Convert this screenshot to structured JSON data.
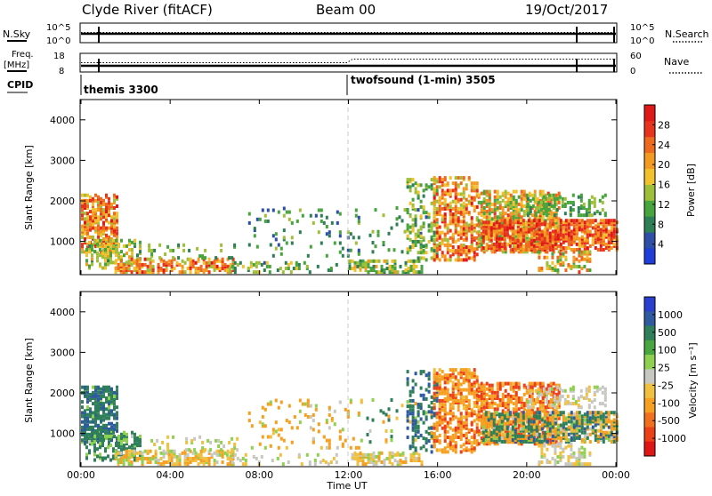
{
  "header": {
    "station": "Clyde River (fitACF)",
    "beam": "Beam 00",
    "date": "19/Oct/2017"
  },
  "top_panel": {
    "nsky_label": "N.Sky",
    "nsearch_label": "N.Search",
    "left_ticks": [
      "10^5",
      "10^0"
    ],
    "right_ticks": [
      "10^5",
      "10^0"
    ]
  },
  "freq_panel": {
    "freq_label": "Freq.",
    "freq_unit": "[MHz]",
    "nave_label": "Nave",
    "left_ticks": [
      "18",
      "8"
    ],
    "right_ticks": [
      "60",
      "0"
    ]
  },
  "cpid": {
    "label": "CPID",
    "segments": [
      {
        "name": "themis 3300",
        "start_hour": 0
      },
      {
        "name": "twofsound (1-min) 3505",
        "start_hour": 12
      }
    ]
  },
  "chart_data": [
    {
      "type": "heatmap",
      "parameter": "Power",
      "ylabel": "Slant Range [km]",
      "ylim": [
        180,
        4500
      ],
      "yticks": [
        1000,
        2000,
        3000,
        4000
      ],
      "xlim": [
        0,
        24
      ],
      "colorbar": {
        "label": "Power [dB]",
        "ticks": [
          "4",
          "8",
          "12",
          "16",
          "20",
          "24",
          "28"
        ],
        "tick_values": [
          4,
          8,
          12,
          16,
          20,
          24,
          28
        ],
        "range": [
          0,
          32
        ],
        "colors": [
          "#1f3dd8",
          "#2e4fa8",
          "#2f7f56",
          "#48a43c",
          "#9fbf3a",
          "#f2c12e",
          "#f39a22",
          "#ee6a1e",
          "#e8341c",
          "#e01818"
        ]
      }
    },
    {
      "type": "heatmap",
      "parameter": "Velocity",
      "ylabel": "Slant Range [km]",
      "ylim": [
        180,
        4500
      ],
      "yticks": [
        1000,
        2000,
        3000,
        4000
      ],
      "xlim": [
        0,
        24
      ],
      "colorbar": {
        "label": "Velocity [m s⁻¹]",
        "ticks": [
          "1000",
          "500",
          "100",
          "25",
          "-25",
          "-100",
          "-500",
          "-1000"
        ],
        "colors": [
          "#2a3fd0",
          "#2f5a9f",
          "#2f7f5a",
          "#4aa63e",
          "#8fd050",
          "#c8c8c2",
          "#f0c040",
          "#f5a020",
          "#f07020",
          "#ec4018",
          "#e01616"
        ]
      }
    }
  ],
  "x_axis": {
    "ticks": [
      "00:00",
      "04:00",
      "08:00",
      "12:00",
      "16:00",
      "20:00",
      "00:00"
    ],
    "tick_hours": [
      0,
      4,
      8,
      12,
      16,
      20,
      24
    ],
    "label": "Time UT"
  },
  "scatter_regions": [
    {
      "h0": 0.0,
      "h1": 1.6,
      "r0": 700,
      "r1": 2100,
      "d": 0.55,
      "p": [
        14,
        30
      ],
      "v": [
        60,
        700
      ]
    },
    {
      "h0": 0.2,
      "h1": 2.6,
      "r0": 300,
      "r1": 1000,
      "d": 0.35,
      "p": [
        8,
        20
      ],
      "v": [
        20,
        300
      ]
    },
    {
      "h0": 1.5,
      "h1": 6.8,
      "r0": 200,
      "r1": 550,
      "d": 0.45,
      "p": [
        14,
        30
      ],
      "v": [
        -200,
        80
      ]
    },
    {
      "h0": 3.0,
      "h1": 7.0,
      "r0": 550,
      "r1": 900,
      "d": 0.12,
      "p": [
        8,
        16
      ],
      "v": [
        -80,
        80
      ]
    },
    {
      "h0": 6.5,
      "h1": 11.5,
      "r0": 200,
      "r1": 450,
      "d": 0.18,
      "p": [
        6,
        18
      ],
      "v": [
        -60,
        60
      ]
    },
    {
      "h0": 7.5,
      "h1": 12.6,
      "r0": 600,
      "r1": 1800,
      "d": 0.08,
      "p": [
        4,
        14
      ],
      "v": [
        -500,
        100
      ]
    },
    {
      "h0": 12.0,
      "h1": 15.3,
      "r0": 200,
      "r1": 480,
      "d": 0.45,
      "p": [
        8,
        20
      ],
      "v": [
        -150,
        60
      ]
    },
    {
      "h0": 12.8,
      "h1": 15.8,
      "r0": 700,
      "r1": 1800,
      "d": 0.06,
      "p": [
        6,
        14
      ],
      "v": [
        -300,
        300
      ]
    },
    {
      "h0": 14.6,
      "h1": 16.0,
      "r0": 500,
      "r1": 2500,
      "d": 0.22,
      "p": [
        8,
        18
      ],
      "v": [
        100,
        900
      ]
    },
    {
      "h0": 15.8,
      "h1": 17.8,
      "r0": 500,
      "r1": 2550,
      "d": 0.42,
      "p": [
        14,
        30
      ],
      "v": [
        -700,
        -60
      ]
    },
    {
      "h0": 17.8,
      "h1": 21.5,
      "r0": 700,
      "r1": 2200,
      "d": 0.5,
      "p": [
        10,
        26
      ],
      "v": [
        -800,
        -80
      ]
    },
    {
      "h0": 18.0,
      "h1": 24.0,
      "r0": 750,
      "r1": 1500,
      "d": 0.62,
      "p": [
        18,
        32
      ],
      "v": [
        -400,
        600
      ]
    },
    {
      "h0": 20.0,
      "h1": 23.5,
      "r0": 1600,
      "r1": 2100,
      "d": 0.25,
      "p": [
        8,
        14
      ],
      "v": [
        -50,
        40
      ]
    },
    {
      "h0": 20.5,
      "h1": 22.8,
      "r0": 200,
      "r1": 700,
      "d": 0.3,
      "p": [
        10,
        26
      ],
      "v": [
        -60,
        40
      ]
    }
  ]
}
